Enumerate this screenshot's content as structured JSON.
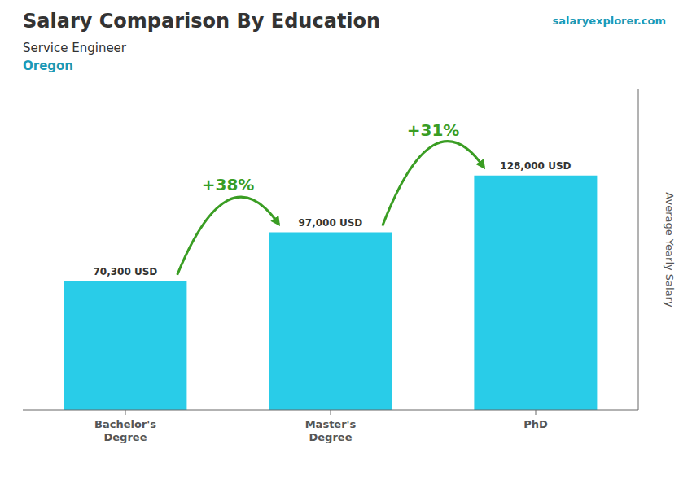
{
  "chart_data": {
    "type": "bar",
    "title": "Salary Comparison By Education",
    "subtitle": [
      "Service Engineer",
      "Oregon"
    ],
    "annotations": [
      "salaryexplorer.com"
    ],
    "change_labels": [
      "+38%",
      "+31%"
    ],
    "categories": [
      "Bachelor's\nDegree",
      "Master's\nDegree",
      "PhD"
    ],
    "values": [
      70300,
      97000,
      128000
    ],
    "value_labels": [
      "70,300 USD",
      "97,000 USD",
      "128,000 USD"
    ],
    "data_labels": true,
    "color": "#29cce8",
    "ylabel": "Average Yearly Salary",
    "ylim": [
      0,
      175000
    ],
    "tick_labels": "x",
    "grid": false
  }
}
